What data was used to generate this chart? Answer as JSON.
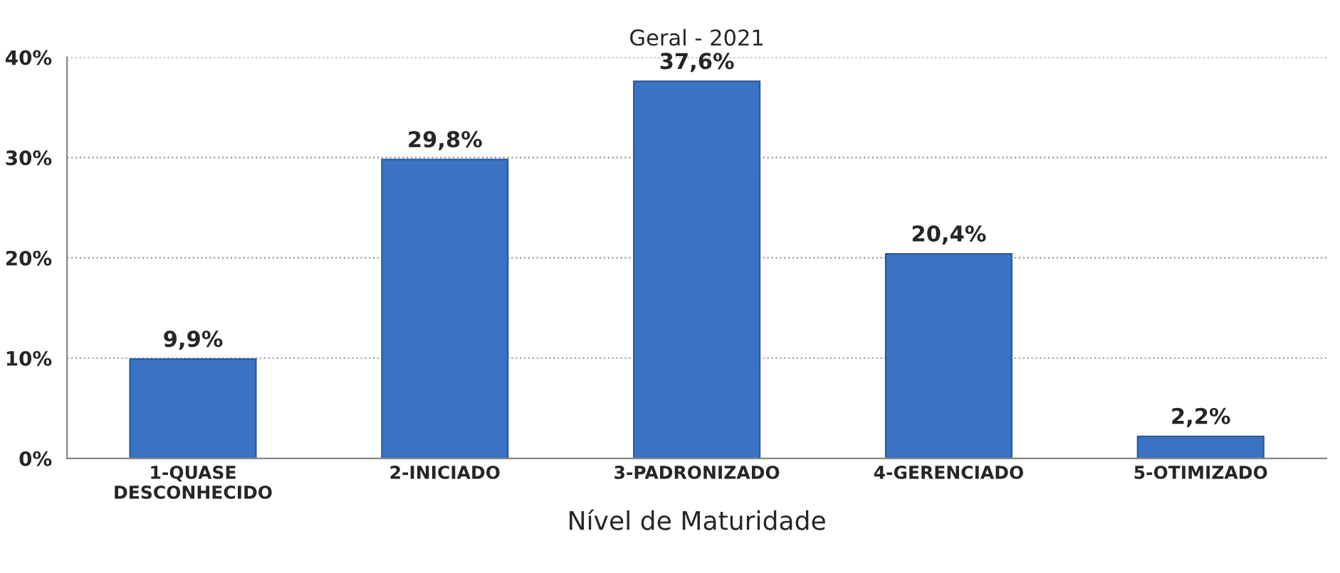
{
  "chart_data": {
    "type": "bar",
    "title": "Geral - 2021",
    "xlabel": "Nível de Maturidade",
    "categories": [
      "1-QUASE\nDESCONHECIDO",
      "2-INICIADO",
      "3-PADRONIZADO",
      "4-GERENCIADO",
      "5-OTIMIZADO"
    ],
    "values": [
      9.9,
      29.8,
      37.6,
      20.4,
      2.2
    ],
    "value_labels": [
      "9,9%",
      "29,8%",
      "37,6%",
      "20,4%",
      "2,2%"
    ],
    "color": "#3a72c4",
    "ylim": [
      0,
      40
    ],
    "yticks": [
      {
        "value": 0,
        "label": "0%"
      },
      {
        "value": 10,
        "label": "10%"
      },
      {
        "value": 20,
        "label": "20%"
      },
      {
        "value": 30,
        "label": "30%"
      },
      {
        "value": 40,
        "label": "40%"
      }
    ],
    "grid": "y",
    "legend": false
  }
}
